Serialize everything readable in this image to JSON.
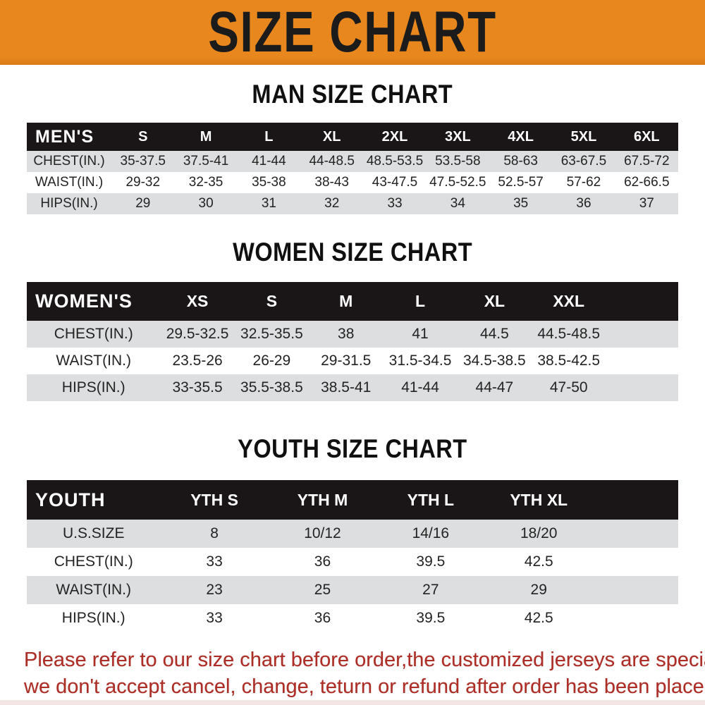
{
  "banner": {
    "title": "SIZE CHART"
  },
  "colors": {
    "banner_bg": "#E7871E",
    "banner_text_color": "#1B1B1B",
    "header_row_bg": "#1A1617",
    "header_row_text": "#FFFFFF",
    "stripe_row_bg": "#DDDEDF",
    "footer_text_color": "#AC2E27"
  },
  "chart_data": [
    {
      "type": "table",
      "title": "MAN SIZE CHART",
      "corner_label": "MEN'S",
      "columns": [
        "S",
        "M",
        "L",
        "XL",
        "2XL",
        "3XL",
        "4XL",
        "5XL",
        "6XL"
      ],
      "rows": [
        {
          "label": "CHEST(IN.)",
          "values": [
            "35-37.5",
            "37.5-41",
            "41-44",
            "44-48.5",
            "48.5-53.5",
            "53.5-58",
            "58-63",
            "63-67.5",
            "67.5-72"
          ]
        },
        {
          "label": "WAIST(IN.)",
          "values": [
            "29-32",
            "32-35",
            "35-38",
            "38-43",
            "43-47.5",
            "47.5-52.5",
            "52.5-57",
            "57-62",
            "62-66.5"
          ]
        },
        {
          "label": "HIPS(IN.)",
          "values": [
            "29",
            "30",
            "31",
            "32",
            "33",
            "34",
            "35",
            "36",
            "37"
          ]
        }
      ]
    },
    {
      "type": "table",
      "title": "WOMEN SIZE CHART",
      "corner_label": "WOMEN'S",
      "columns": [
        "XS",
        "S",
        "M",
        "L",
        "XL",
        "XXL"
      ],
      "rows": [
        {
          "label": "CHEST(IN.)",
          "values": [
            "29.5-32.5",
            "32.5-35.5",
            "38",
            "41",
            "44.5",
            "44.5-48.5"
          ]
        },
        {
          "label": "WAIST(IN.)",
          "values": [
            "23.5-26",
            "26-29",
            "29-31.5",
            "31.5-34.5",
            "34.5-38.5",
            "38.5-42.5"
          ]
        },
        {
          "label": "HIPS(IN.)",
          "values": [
            "33-35.5",
            "35.5-38.5",
            "38.5-41",
            "41-44",
            "44-47",
            "47-50"
          ]
        }
      ]
    },
    {
      "type": "table",
      "title": "YOUTH SIZE CHART",
      "corner_label": "YOUTH",
      "columns": [
        "YTH S",
        "YTH M",
        "YTH L",
        "YTH XL"
      ],
      "rows": [
        {
          "label": "U.S.SIZE",
          "values": [
            "8",
            "10/12",
            "14/16",
            "18/20"
          ]
        },
        {
          "label": "CHEST(IN.)",
          "values": [
            "33",
            "36",
            "39.5",
            "42.5"
          ]
        },
        {
          "label": "WAIST(IN.)",
          "values": [
            "23",
            "25",
            "27",
            "29"
          ]
        },
        {
          "label": "HIPS(IN.)",
          "values": [
            "33",
            "36",
            "39.5",
            "42.5"
          ]
        }
      ]
    }
  ],
  "footer": {
    "line1": "Please refer to our size chart before order,the customized jerseys are special products,",
    "line2": "we don't accept cancel, change, teturn or refund after order has been placed!"
  }
}
